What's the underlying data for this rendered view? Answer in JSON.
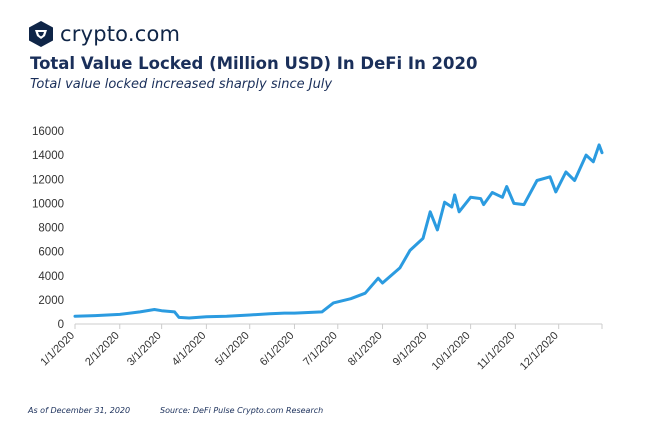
{
  "brand": {
    "name": "crypto.com"
  },
  "header": {
    "title": "Total Value Locked (Million USD) In DeFi In 2020",
    "subtitle": "Total value locked increased sharply since July"
  },
  "footer": {
    "as_of": "As of December 31, 2020",
    "source": "Source: DeFi Pulse Crypto.com Research"
  },
  "colors": {
    "line": "#2b9be0",
    "text": "#1a2f5a",
    "axis": "#cccccc"
  },
  "chart_data": {
    "type": "line",
    "title": "",
    "xlabel": "",
    "ylabel": "",
    "ylim": [
      0,
      16000
    ],
    "grid": false,
    "legend": "none",
    "yticks": [
      0,
      2000,
      4000,
      6000,
      8000,
      10000,
      12000,
      14000,
      16000
    ],
    "xticks": [
      "1/1/2020",
      "2/1/2020",
      "3/1/2020",
      "4/1/2020",
      "5/1/2020",
      "6/1/2020",
      "7/1/2020",
      "8/1/2020",
      "9/1/2020",
      "10/1/2020",
      "11/1/2020",
      "12/1/2020"
    ],
    "series": [
      {
        "points": [
          [
            "2020-01-01",
            650
          ],
          [
            "2020-01-15",
            700
          ],
          [
            "2020-02-01",
            800
          ],
          [
            "2020-02-15",
            1000
          ],
          [
            "2020-02-25",
            1200
          ],
          [
            "2020-03-01",
            1100
          ],
          [
            "2020-03-10",
            1000
          ],
          [
            "2020-03-13",
            550
          ],
          [
            "2020-03-20",
            500
          ],
          [
            "2020-04-01",
            600
          ],
          [
            "2020-04-15",
            650
          ],
          [
            "2020-05-01",
            750
          ],
          [
            "2020-05-15",
            850
          ],
          [
            "2020-05-25",
            900
          ],
          [
            "2020-06-01",
            900
          ],
          [
            "2020-06-20",
            1000
          ],
          [
            "2020-06-28",
            1750
          ],
          [
            "2020-07-10",
            2100
          ],
          [
            "2020-07-20",
            2550
          ],
          [
            "2020-07-29",
            3800
          ],
          [
            "2020-08-01",
            3400
          ],
          [
            "2020-08-13",
            4650
          ],
          [
            "2020-08-20",
            6100
          ],
          [
            "2020-08-29",
            7100
          ],
          [
            "2020-09-03",
            9300
          ],
          [
            "2020-09-08",
            7800
          ],
          [
            "2020-09-13",
            10100
          ],
          [
            "2020-09-18",
            9700
          ],
          [
            "2020-09-20",
            10700
          ],
          [
            "2020-09-23",
            9300
          ],
          [
            "2020-10-01",
            10500
          ],
          [
            "2020-10-08",
            10400
          ],
          [
            "2020-10-10",
            9900
          ],
          [
            "2020-10-16",
            10900
          ],
          [
            "2020-10-23",
            10500
          ],
          [
            "2020-10-26",
            11400
          ],
          [
            "2020-10-31",
            10000
          ],
          [
            "2020-11-07",
            9900
          ],
          [
            "2020-11-16",
            11900
          ],
          [
            "2020-11-25",
            12200
          ],
          [
            "2020-11-29",
            10950
          ],
          [
            "2020-12-06",
            12600
          ],
          [
            "2020-12-12",
            11900
          ],
          [
            "2020-12-20",
            14000
          ],
          [
            "2020-12-25",
            13450
          ],
          [
            "2020-12-29",
            14850
          ],
          [
            "2020-12-31",
            14200
          ]
        ]
      }
    ]
  }
}
